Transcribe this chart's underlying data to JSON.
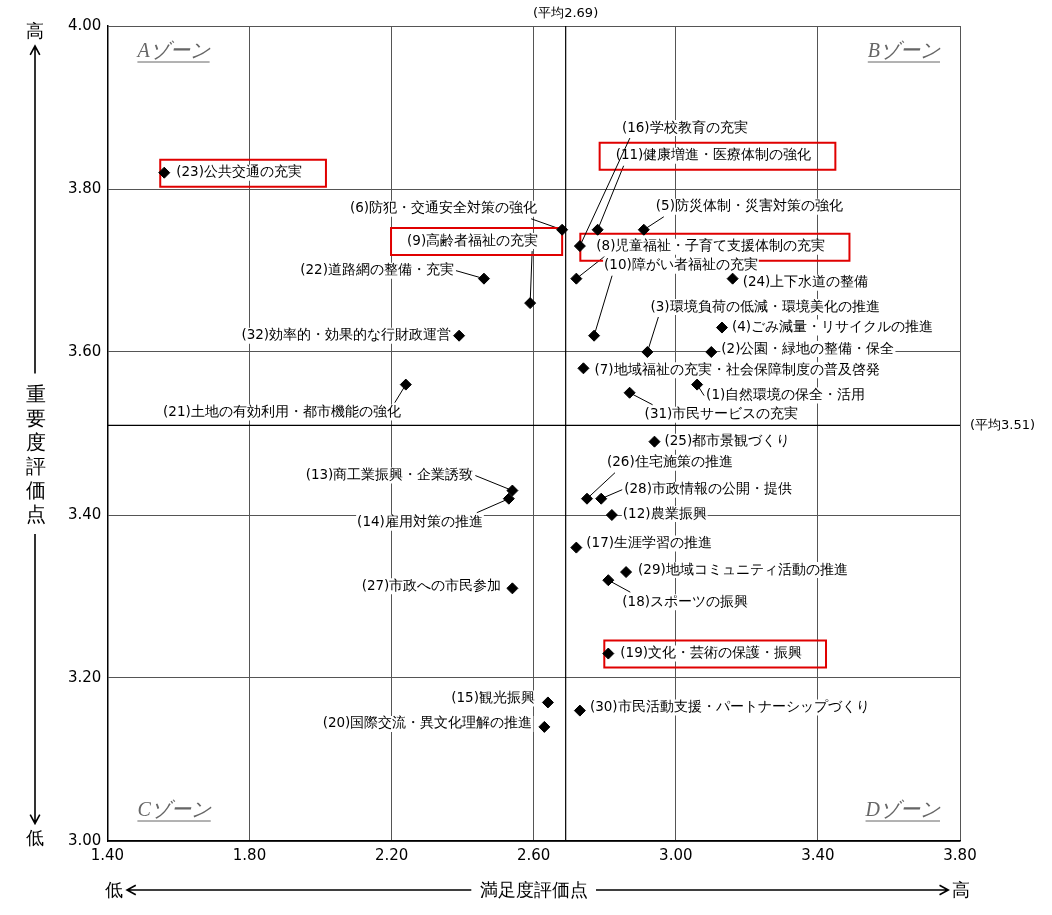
{
  "chart_data": {
    "type": "scatter",
    "xlabel": "満足度評価点",
    "ylabel": "重要度評価点",
    "xlim": [
      1.4,
      3.8
    ],
    "ylim": [
      3.0,
      4.0
    ],
    "xticks": [
      {
        "value": 1.4,
        "label": "1.40"
      },
      {
        "value": 1.8,
        "label": "1.80"
      },
      {
        "value": 2.2,
        "label": "2.20"
      },
      {
        "value": 2.6,
        "label": "2.60"
      },
      {
        "value": 3.0,
        "label": "3.00"
      },
      {
        "value": 3.4,
        "label": "3.40"
      },
      {
        "value": 3.8,
        "label": "3.80"
      }
    ],
    "yticks": [
      {
        "value": 3.0,
        "label": "3.00"
      },
      {
        "value": 3.2,
        "label": "3.20"
      },
      {
        "value": 3.4,
        "label": "3.40"
      },
      {
        "value": 3.6,
        "label": "3.60"
      },
      {
        "value": 3.8,
        "label": "3.80"
      },
      {
        "value": 4.0,
        "label": "4.00"
      }
    ],
    "grid": true,
    "marker": "diamond",
    "series": [
      {
        "color": "#000000",
        "x": [
          3.06,
          3.1,
          2.92,
          3.13,
          2.91,
          2.68,
          2.74,
          2.77,
          2.82,
          2.54,
          2.53,
          2.64,
          2.73,
          2.72,
          2.81,
          2.63,
          2.24,
          2.46,
          3.16,
          2.94,
          2.75,
          2.54,
          2.79,
          2.86,
          2.73,
          2.87,
          2.39
        ],
        "values": [
          3.56,
          3.6,
          3.6,
          3.63,
          3.75,
          3.75,
          3.58,
          3.62,
          3.4,
          3.43,
          3.42,
          3.17,
          3.73,
          3.36,
          3.32,
          3.14,
          3.56,
          3.69,
          3.69,
          3.49,
          3.42,
          3.31,
          3.42,
          3.33,
          3.16,
          3.55,
          3.62
        ]
      },
      {
        "color": "#000000",
        "x": [
          2.72,
          2.59,
          2.78,
          2.81,
          1.56
        ],
        "values": [
          3.69,
          3.66,
          3.75,
          3.23,
          3.82
        ]
      }
    ],
    "ref_lines": [
      {
        "axis": "x",
        "value": 2.69,
        "label": "(平均2.69)"
      },
      {
        "axis": "y",
        "value": 3.51,
        "label": "(平均3.51)"
      }
    ],
    "annotations": [
      {
        "text": "(1)自然環境の保全・活用",
        "x": 3.06,
        "y": 3.56
      },
      {
        "text": "(2)公園・緑地の整備・保全",
        "x": 3.1,
        "y": 3.6
      },
      {
        "text": "(3)環境負荷の低減・環境美化の推進",
        "x": 2.92,
        "y": 3.6
      },
      {
        "text": "(4)ごみ減量・リサイクルの推進",
        "x": 3.13,
        "y": 3.63
      },
      {
        "text": "(5)防災体制・災害対策の強化",
        "x": 2.91,
        "y": 3.75
      },
      {
        "text": "(6)防犯・交通安全対策の強化",
        "x": 2.68,
        "y": 3.75
      },
      {
        "text": "(7)地域福祉の充実・社会保障制度の普及啓発",
        "x": 2.74,
        "y": 3.58
      },
      {
        "text": "(8)児童福祉・子育て支援体制の充実",
        "x": 2.72,
        "y": 3.69
      },
      {
        "text": "(9)高齢者福祉の充実",
        "x": 2.59,
        "y": 3.66
      },
      {
        "text": "(10)障がい者福祉の充実",
        "x": 2.77,
        "y": 3.62
      },
      {
        "text": "(11)健康増進・医療体制の強化",
        "x": 2.78,
        "y": 3.75
      },
      {
        "text": "(12)農業振興",
        "x": 2.82,
        "y": 3.4
      },
      {
        "text": "(13)商工業振興・企業誘致",
        "x": 2.54,
        "y": 3.43
      },
      {
        "text": "(14)雇用対策の推進",
        "x": 2.53,
        "y": 3.42
      },
      {
        "text": "(15)観光振興",
        "x": 2.64,
        "y": 3.17
      },
      {
        "text": "(16)学校教育の充実",
        "x": 2.73,
        "y": 3.73
      },
      {
        "text": "(17)生涯学習の推進",
        "x": 2.72,
        "y": 3.36
      },
      {
        "text": "(18)スポーツの振興",
        "x": 2.81,
        "y": 3.32
      },
      {
        "text": "(19)文化・芸術の保護・振興",
        "x": 2.81,
        "y": 3.23
      },
      {
        "text": "(20)国際交流・異文化理解の推進",
        "x": 2.63,
        "y": 3.14
      },
      {
        "text": "(21)土地の有効利用・都市機能の強化",
        "x": 2.24,
        "y": 3.56
      },
      {
        "text": "(22)道路網の整備・充実",
        "x": 2.46,
        "y": 3.69
      },
      {
        "text": "(23)公共交通の充実",
        "x": 1.56,
        "y": 3.82
      },
      {
        "text": "(24)上下水道の整備",
        "x": 3.16,
        "y": 3.69
      },
      {
        "text": "(25)都市景観づくり",
        "x": 2.94,
        "y": 3.49
      },
      {
        "text": "(26)住宅施策の推進",
        "x": 2.75,
        "y": 3.42
      },
      {
        "text": "(27)市政への市民参加",
        "x": 2.54,
        "y": 3.31
      },
      {
        "text": "(28)市政情報の公開・提供",
        "x": 2.79,
        "y": 3.42
      },
      {
        "text": "(29)地域コミュニティ活動の推進",
        "x": 2.86,
        "y": 3.33
      },
      {
        "text": "(30)市民活動支援・パートナーシップづくり",
        "x": 2.73,
        "y": 3.16
      },
      {
        "text": "(31)市民サービスの充実",
        "x": 2.87,
        "y": 3.55
      },
      {
        "text": "(32)効率的・効果的な行財政運営",
        "x": 2.39,
        "y": 3.62
      },
      "Aゾーン",
      "Bゾーン",
      "Cゾーン",
      "Dゾーン",
      "低",
      "高",
      "高",
      "低"
    ]
  }
}
